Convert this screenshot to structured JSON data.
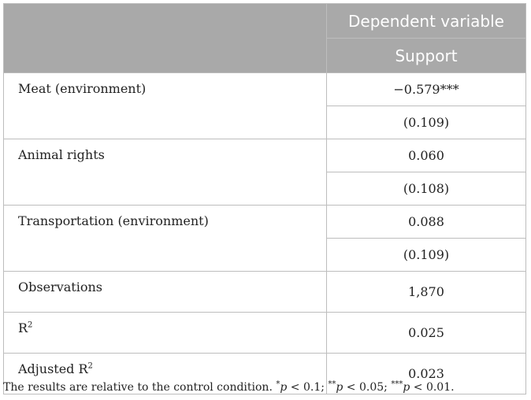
{
  "header": {
    "dependent_variable": "Dependent variable",
    "outcome": "Support"
  },
  "rows": [
    {
      "label": "Meat (environment)",
      "coef": "−0.579***",
      "se": "(0.109)"
    },
    {
      "label": "Animal rights",
      "coef": "0.060",
      "se": "(0.108)"
    },
    {
      "label": "Transportation (environment)",
      "coef": "0.088",
      "se": "(0.109)"
    }
  ],
  "stats": [
    {
      "label": "Observations",
      "value": "1,870"
    },
    {
      "label": "R",
      "sup": "2",
      "value": "0.025"
    },
    {
      "label": "Adjusted R",
      "sup": "2",
      "value": "0.023"
    }
  ],
  "note": {
    "text": "The results are relative to the control condition.",
    "sig1_stars": "*",
    "sig1_var": "p",
    "sig1_rest": " < 0.1; ",
    "sig2_stars": "**",
    "sig2_var": "p",
    "sig2_rest": " < 0.05; ",
    "sig3_stars": "***",
    "sig3_var": "p",
    "sig3_rest": " < 0.01."
  }
}
